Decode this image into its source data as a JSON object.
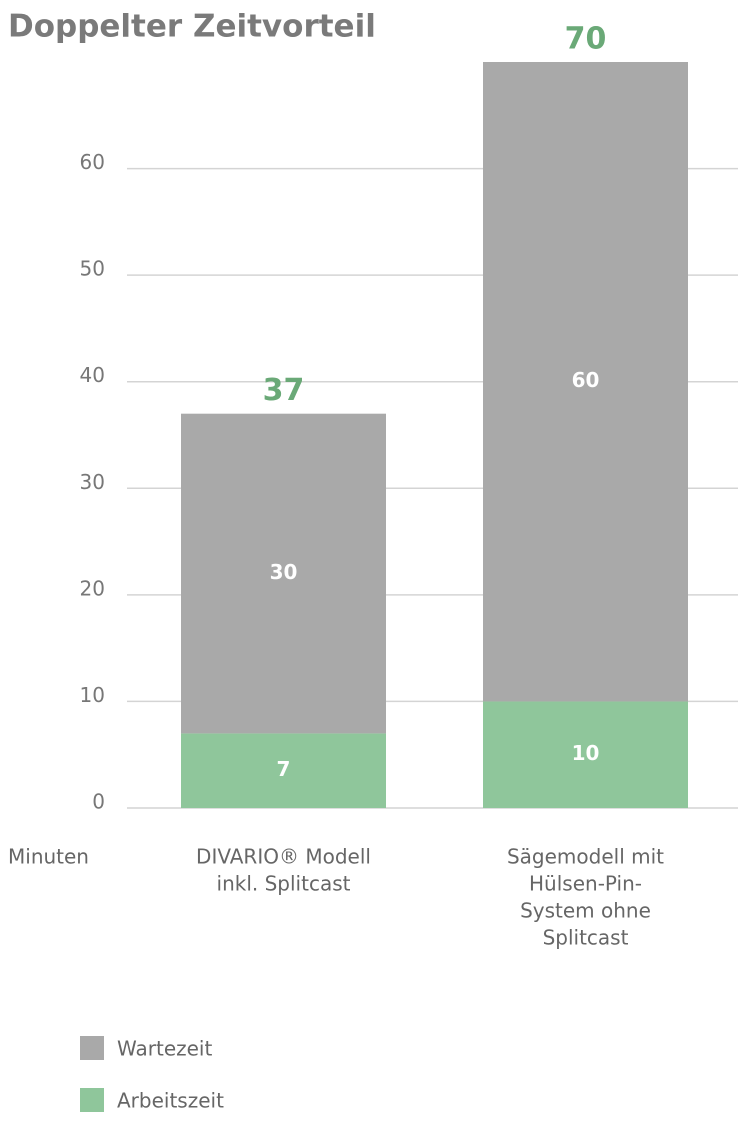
{
  "chart_data": {
    "type": "stacked_bar",
    "title": "Doppelter Zeitvorteil",
    "y_label": "Minuten",
    "categories": [
      [
        "DIVARIO® Modell",
        "inkl. Splitcast"
      ],
      [
        "Sägemodell mit",
        "Hülsen-Pin-",
        "System ohne",
        "Splitcast"
      ]
    ],
    "series": [
      {
        "name": "Arbeitszeit",
        "color": "#8fc69b",
        "values": [
          7,
          10
        ]
      },
      {
        "name": "Wartezeit",
        "color": "#a9a9a9",
        "values": [
          30,
          60
        ]
      }
    ],
    "totals": [
      37,
      70
    ],
    "total_color": "#6aa977",
    "ylim": [
      0,
      70
    ],
    "yticks": [
      0,
      10,
      20,
      30,
      40,
      50,
      60
    ],
    "grid": true
  }
}
